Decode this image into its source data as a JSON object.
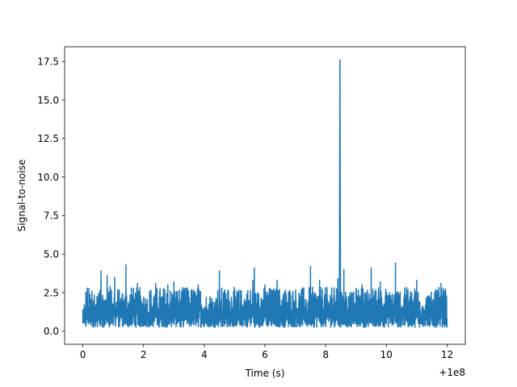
{
  "chart_data": {
    "type": "line",
    "title": "",
    "xlabel": "Time (s)",
    "ylabel": "Signal-to-noise",
    "x_offset_label": "+1e8",
    "xlim": [
      -0.6,
      12.6
    ],
    "ylim": [
      -0.85,
      18.45
    ],
    "x_ticks": [
      0,
      2,
      4,
      6,
      8,
      10,
      12
    ],
    "x_tick_labels": [
      "0",
      "2",
      "4",
      "6",
      "8",
      "10",
      "12"
    ],
    "y_ticks": [
      0.0,
      2.5,
      5.0,
      7.5,
      10.0,
      12.5,
      15.0,
      17.5
    ],
    "y_tick_labels": [
      "0.0",
      "2.5",
      "5.0",
      "7.5",
      "10.0",
      "12.5",
      "15.0",
      "17.5"
    ],
    "grid": false,
    "color": "#1f77b4",
    "series": [
      {
        "name": "",
        "x": [
          0.0,
          0.05,
          0.1,
          0.15,
          0.2,
          0.3,
          0.4,
          0.5,
          0.55,
          0.6,
          0.7,
          0.8,
          0.85,
          0.9,
          1.0,
          1.05,
          1.2,
          1.3,
          1.4,
          1.42,
          1.5,
          1.6,
          1.7,
          1.8,
          1.9,
          2.0,
          2.2,
          2.4,
          2.6,
          2.8,
          2.9,
          3.0,
          3.2,
          3.4,
          3.6,
          3.8,
          4.0,
          4.2,
          4.4,
          4.5,
          4.6,
          4.8,
          5.0,
          5.2,
          5.4,
          5.6,
          5.65,
          5.8,
          6.0,
          6.2,
          6.4,
          6.6,
          6.8,
          7.0,
          7.2,
          7.4,
          7.5,
          7.6,
          7.8,
          8.0,
          8.2,
          8.3,
          8.4,
          8.45,
          8.47,
          8.49,
          8.6,
          8.7,
          8.8,
          9.0,
          9.2,
          9.4,
          9.5,
          9.6,
          9.8,
          10.0,
          10.2,
          10.3,
          10.4,
          10.6,
          10.8,
          11.0,
          11.2,
          11.4,
          11.6,
          11.8,
          11.95,
          12.0
        ],
        "y": [
          0.5,
          1.7,
          0.3,
          2.8,
          0.6,
          2.6,
          0.4,
          2.2,
          0.5,
          3.9,
          0.3,
          3.6,
          0.5,
          2.9,
          0.4,
          3.5,
          0.3,
          2.4,
          0.5,
          4.3,
          0.3,
          2.8,
          0.4,
          3.1,
          0.3,
          2.2,
          0.5,
          3.1,
          0.3,
          3.0,
          0.5,
          3.2,
          0.3,
          2.8,
          0.5,
          3.0,
          0.3,
          2.2,
          0.5,
          3.9,
          0.3,
          2.6,
          0.4,
          2.5,
          0.3,
          3.3,
          4.1,
          0.3,
          3.0,
          0.4,
          3.3,
          0.3,
          2.6,
          0.5,
          2.7,
          0.3,
          4.2,
          0.5,
          3.3,
          0.3,
          2.8,
          0.5,
          3.4,
          0.3,
          17.6,
          0.4,
          4.0,
          0.3,
          2.3,
          0.5,
          3.0,
          0.3,
          4.1,
          0.4,
          3.2,
          0.5,
          2.4,
          4.4,
          0.3,
          2.8,
          0.4,
          3.3,
          0.3,
          2.3,
          0.5,
          3.1,
          2.4,
          0.8
        ]
      }
    ]
  }
}
